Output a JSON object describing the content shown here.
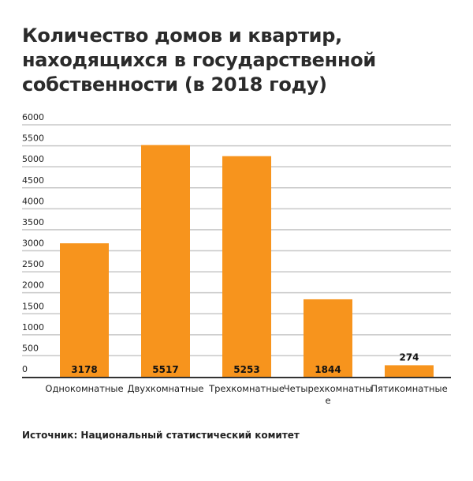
{
  "chart_data": {
    "type": "bar",
    "title": "Количество домов и квартир, находящихся в государственной собственности (в 2018 году)",
    "categories": [
      "Однокомнатные",
      "Двухкомнатные",
      "Трехкомнатные",
      "Четырехкомнатные",
      "Пятикомнатные"
    ],
    "values": [
      3178,
      5517,
      5253,
      1844,
      274
    ],
    "data_labels": [
      "3178",
      "5517",
      "5253",
      "1844",
      "274"
    ],
    "xlabel": "",
    "ylabel": "",
    "ylim": [
      0,
      6000
    ],
    "yticks": [
      "0",
      "500",
      "1000",
      "1500",
      "2000",
      "2500",
      "3000",
      "3500",
      "4000",
      "4500",
      "5000",
      "5500",
      "6000"
    ],
    "grid": true,
    "legend": "none",
    "bar_color": "#f7941d",
    "source": "Источник: Национальный статистический комитет"
  }
}
